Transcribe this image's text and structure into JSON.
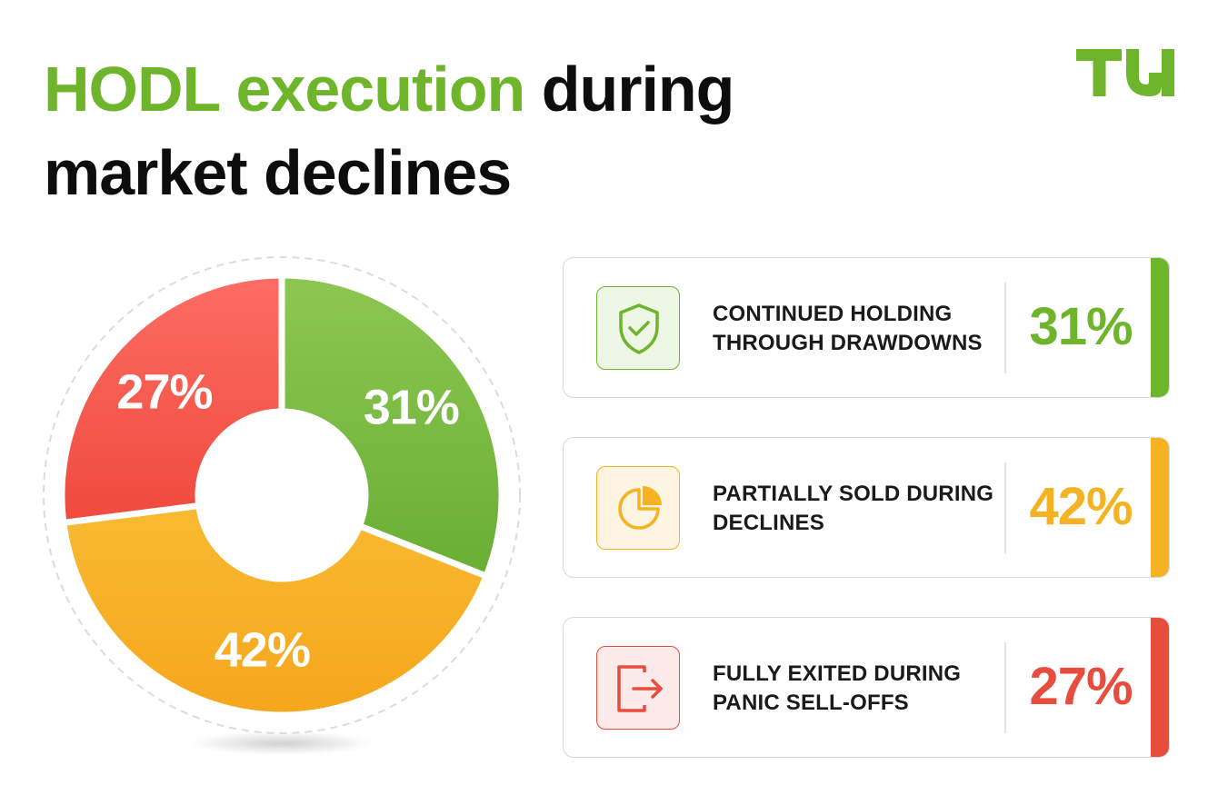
{
  "header": {
    "title_accent": "HODL execution",
    "title_rest_line1": "during",
    "title_line2": "market declines"
  },
  "logo": {
    "text": "TU",
    "color": "#6fb52c"
  },
  "colors": {
    "accent": "#6fb52c",
    "green": "#6fb52c",
    "yellow": "#f5b324",
    "red": "#e84c3d",
    "text": "#0d0d0d"
  },
  "chart_data": {
    "type": "pie",
    "donut": true,
    "start_angle_deg": 0,
    "direction": "clockwise",
    "slices": [
      {
        "label": "31%",
        "value": 31,
        "color": "#6fb52c",
        "gradient": [
          "#8cc752",
          "#6aae34"
        ]
      },
      {
        "label": "42%",
        "value": 42,
        "color": "#f5b324",
        "gradient": [
          "#f8ba32",
          "#f5a61c"
        ]
      },
      {
        "label": "27%",
        "value": 27,
        "color": "#e84c3d",
        "gradient": [
          "#fd6d63",
          "#ef4a3d"
        ]
      }
    ]
  },
  "cards": [
    {
      "label_line1": "CONTINUED HOLDING",
      "label_line2": "THROUGH DRAWDOWNS",
      "value": "31%",
      "color": "#6fb52c",
      "tint": "#eef6e6",
      "icon": "shield-check-icon"
    },
    {
      "label_line1": "PARTIALLY SOLD DURING",
      "label_line2": "DECLINES",
      "value": "42%",
      "color": "#f5b324",
      "tint": "#fdf5e1",
      "icon": "pie-chart-icon"
    },
    {
      "label_line1": "FULLY EXITED DURING",
      "label_line2": "PANIC SELL-OFFS",
      "value": "27%",
      "color": "#e84c3d",
      "tint": "#fcebea",
      "icon": "exit-icon"
    }
  ]
}
